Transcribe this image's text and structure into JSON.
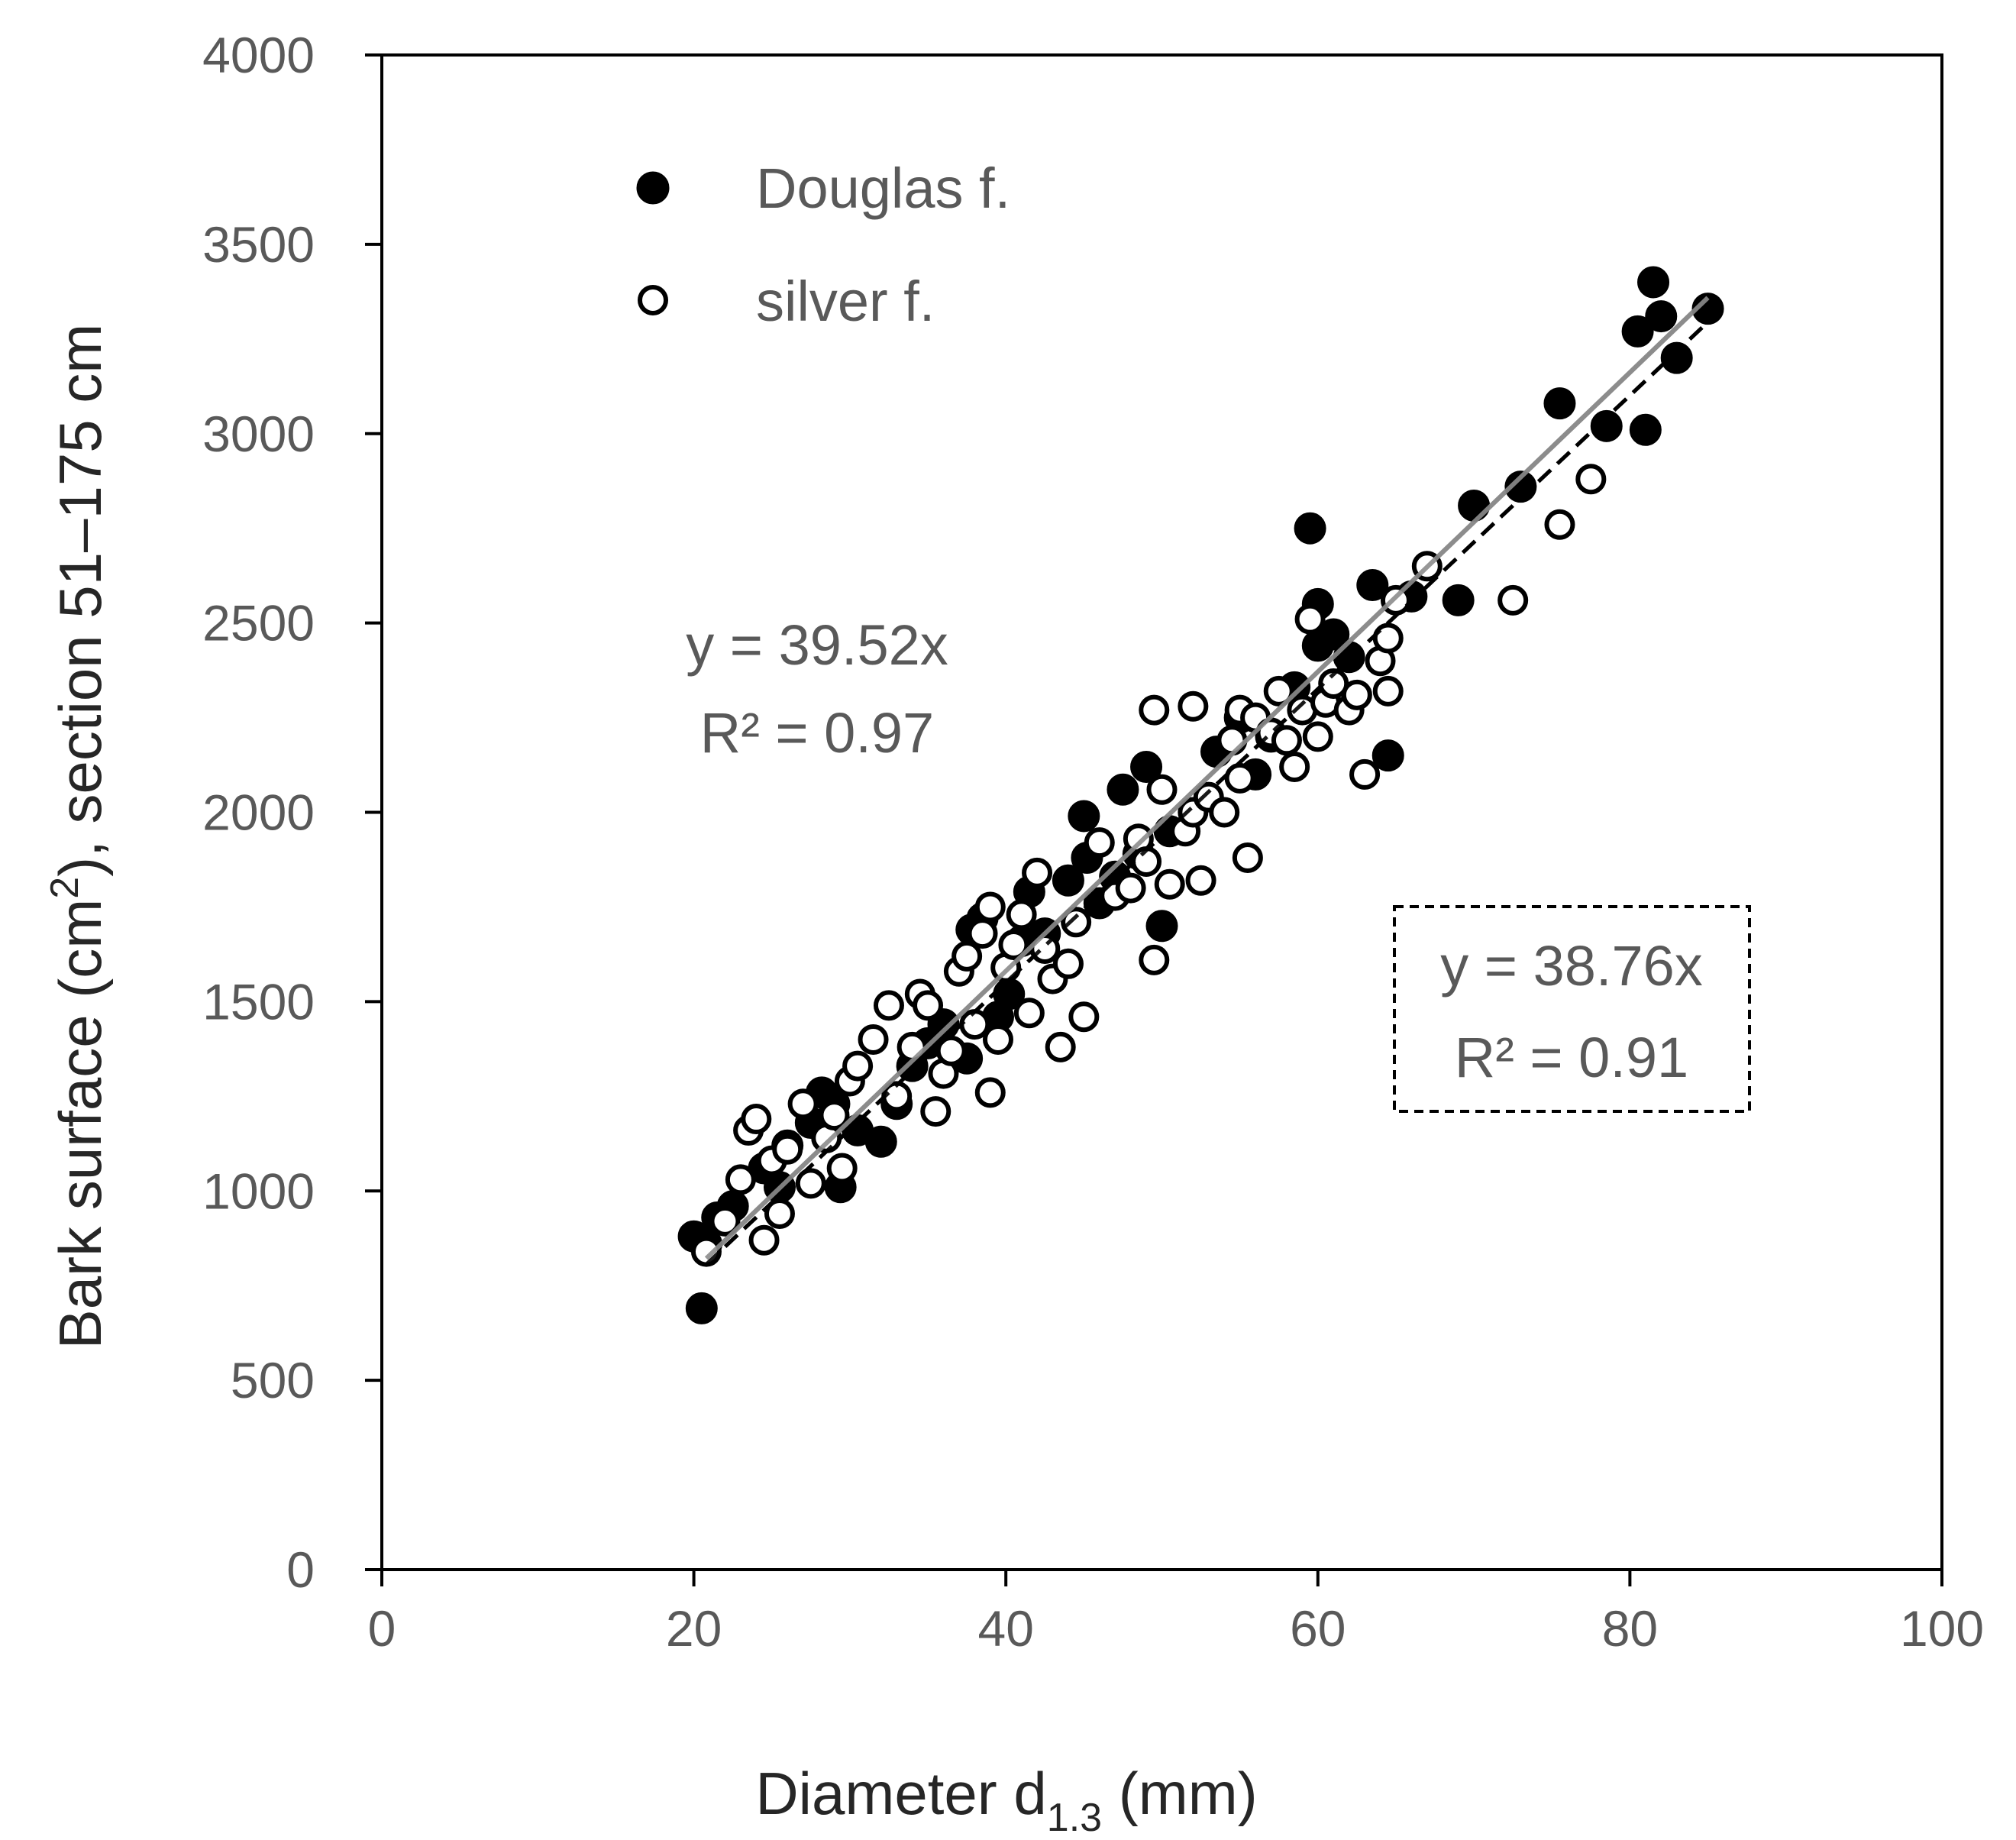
{
  "chart_data": {
    "type": "scatter",
    "xlabel": {
      "main": "Diameter d",
      "sub": "1.3",
      "unit": " (mm)"
    },
    "ylabel": {
      "pre": "Bark surface (cm",
      "sup": "2",
      "post": "),  section 51–175 cm"
    },
    "xlim": [
      0,
      100
    ],
    "ylim": [
      0,
      4000
    ],
    "xticks": [
      "0",
      "20",
      "40",
      "60",
      "80",
      "100"
    ],
    "yticks": [
      "0",
      "500",
      "1000",
      "1500",
      "2000",
      "2500",
      "3000",
      "3500",
      "4000"
    ],
    "grid": false,
    "legend_position": "top-left",
    "series": [
      {
        "name": "Douglas f.",
        "marker": "filled-circle",
        "color": "#000000",
        "points": [
          [
            20.0,
            880
          ],
          [
            20.5,
            690
          ],
          [
            20.8,
            860
          ],
          [
            21.5,
            930
          ],
          [
            22.5,
            960
          ],
          [
            24.5,
            1060
          ],
          [
            25.5,
            1010
          ],
          [
            26.0,
            1120
          ],
          [
            27.5,
            1180
          ],
          [
            28.2,
            1260
          ],
          [
            29.0,
            1230
          ],
          [
            29.4,
            1010
          ],
          [
            30.5,
            1160
          ],
          [
            32.0,
            1130
          ],
          [
            33.0,
            1230
          ],
          [
            34.0,
            1330
          ],
          [
            35.0,
            1390
          ],
          [
            36.0,
            1440
          ],
          [
            37.5,
            1350
          ],
          [
            37.8,
            1690
          ],
          [
            38.5,
            1720
          ],
          [
            39.5,
            1460
          ],
          [
            40.2,
            1520
          ],
          [
            41.0,
            1660
          ],
          [
            41.5,
            1790
          ],
          [
            42.5,
            1680
          ],
          [
            44.0,
            1820
          ],
          [
            45.0,
            1990
          ],
          [
            45.2,
            1880
          ],
          [
            46.0,
            1760
          ],
          [
            47.0,
            1830
          ],
          [
            47.5,
            2060
          ],
          [
            48.5,
            1890
          ],
          [
            49.0,
            2120
          ],
          [
            50.0,
            1700
          ],
          [
            50.5,
            1950
          ],
          [
            53.5,
            2160
          ],
          [
            55.0,
            2250
          ],
          [
            56.0,
            2100
          ],
          [
            57.0,
            2200
          ],
          [
            58.5,
            2330
          ],
          [
            59.5,
            2750
          ],
          [
            60.0,
            2440
          ],
          [
            60.0,
            2550
          ],
          [
            61.0,
            2470
          ],
          [
            62.0,
            2410
          ],
          [
            63.5,
            2600
          ],
          [
            64.5,
            2150
          ],
          [
            66.0,
            2570
          ],
          [
            69.0,
            2560
          ],
          [
            70.0,
            2810
          ],
          [
            73.0,
            2860
          ],
          [
            75.5,
            3080
          ],
          [
            78.5,
            3020
          ],
          [
            81.0,
            3010
          ],
          [
            80.5,
            3270
          ],
          [
            81.5,
            3400
          ],
          [
            82.0,
            3310
          ],
          [
            83.0,
            3200
          ],
          [
            85.0,
            3330
          ]
        ]
      },
      {
        "name": "silver f.",
        "marker": "open-circle",
        "color": "#000000",
        "points": [
          [
            20.8,
            840
          ],
          [
            22.0,
            920
          ],
          [
            23.0,
            1030
          ],
          [
            23.5,
            1160
          ],
          [
            24.0,
            1190
          ],
          [
            24.5,
            870
          ],
          [
            25.0,
            1080
          ],
          [
            25.5,
            940
          ],
          [
            26.0,
            1110
          ],
          [
            27.0,
            1230
          ],
          [
            27.5,
            1020
          ],
          [
            28.5,
            1140
          ],
          [
            29.0,
            1200
          ],
          [
            29.5,
            1060
          ],
          [
            30.0,
            1290
          ],
          [
            30.5,
            1330
          ],
          [
            31.5,
            1400
          ],
          [
            32.5,
            1490
          ],
          [
            33.0,
            1250
          ],
          [
            34.0,
            1380
          ],
          [
            34.5,
            1520
          ],
          [
            35.0,
            1490
          ],
          [
            35.5,
            1210
          ],
          [
            36.0,
            1310
          ],
          [
            36.5,
            1370
          ],
          [
            37.0,
            1580
          ],
          [
            37.5,
            1620
          ],
          [
            38.0,
            1440
          ],
          [
            38.5,
            1680
          ],
          [
            39.0,
            1750
          ],
          [
            39.0,
            1260
          ],
          [
            39.5,
            1400
          ],
          [
            40.0,
            1590
          ],
          [
            40.5,
            1650
          ],
          [
            41.0,
            1730
          ],
          [
            41.5,
            1470
          ],
          [
            42.0,
            1840
          ],
          [
            42.5,
            1640
          ],
          [
            43.0,
            1560
          ],
          [
            43.5,
            1380
          ],
          [
            44.0,
            1600
          ],
          [
            44.5,
            1710
          ],
          [
            45.0,
            1460
          ],
          [
            46.0,
            1920
          ],
          [
            47.0,
            1780
          ],
          [
            48.0,
            1800
          ],
          [
            48.5,
            1930
          ],
          [
            49.0,
            1870
          ],
          [
            49.5,
            2270
          ],
          [
            49.5,
            1610
          ],
          [
            50.0,
            2060
          ],
          [
            50.5,
            1810
          ],
          [
            51.5,
            1950
          ],
          [
            52.0,
            2000
          ],
          [
            52.0,
            2280
          ],
          [
            52.5,
            1820
          ],
          [
            53.0,
            2040
          ],
          [
            54.0,
            2000
          ],
          [
            54.5,
            2190
          ],
          [
            55.0,
            2090
          ],
          [
            55.0,
            2270
          ],
          [
            55.5,
            1880
          ],
          [
            56.0,
            2250
          ],
          [
            57.0,
            2210
          ],
          [
            57.5,
            2320
          ],
          [
            58.0,
            2190
          ],
          [
            58.5,
            2120
          ],
          [
            59.0,
            2270
          ],
          [
            59.5,
            2510
          ],
          [
            60.0,
            2200
          ],
          [
            60.5,
            2290
          ],
          [
            61.0,
            2340
          ],
          [
            62.0,
            2270
          ],
          [
            62.5,
            2310
          ],
          [
            63.0,
            2100
          ],
          [
            64.0,
            2400
          ],
          [
            64.5,
            2320
          ],
          [
            64.5,
            2460
          ],
          [
            65.0,
            2560
          ],
          [
            67.0,
            2650
          ],
          [
            72.5,
            2560
          ],
          [
            75.5,
            2760
          ],
          [
            77.5,
            2880
          ]
        ]
      }
    ],
    "fits": [
      {
        "name": "Douglas f. fit",
        "slope": 38.76,
        "x_range": [
          20.8,
          85.0
        ],
        "style": "dashed",
        "color": "#000000"
      },
      {
        "name": "silver f. fit",
        "slope": 39.52,
        "x_range": [
          20.8,
          85.0
        ],
        "style": "solid",
        "color": "#8c8c8c"
      }
    ],
    "annotations": [
      {
        "line1": "y = 39.52x",
        "line2": "R² = 0.97",
        "boxed": false
      },
      {
        "line1": "y = 38.76x",
        "line2": "R² = 0.91",
        "boxed": true
      }
    ]
  }
}
